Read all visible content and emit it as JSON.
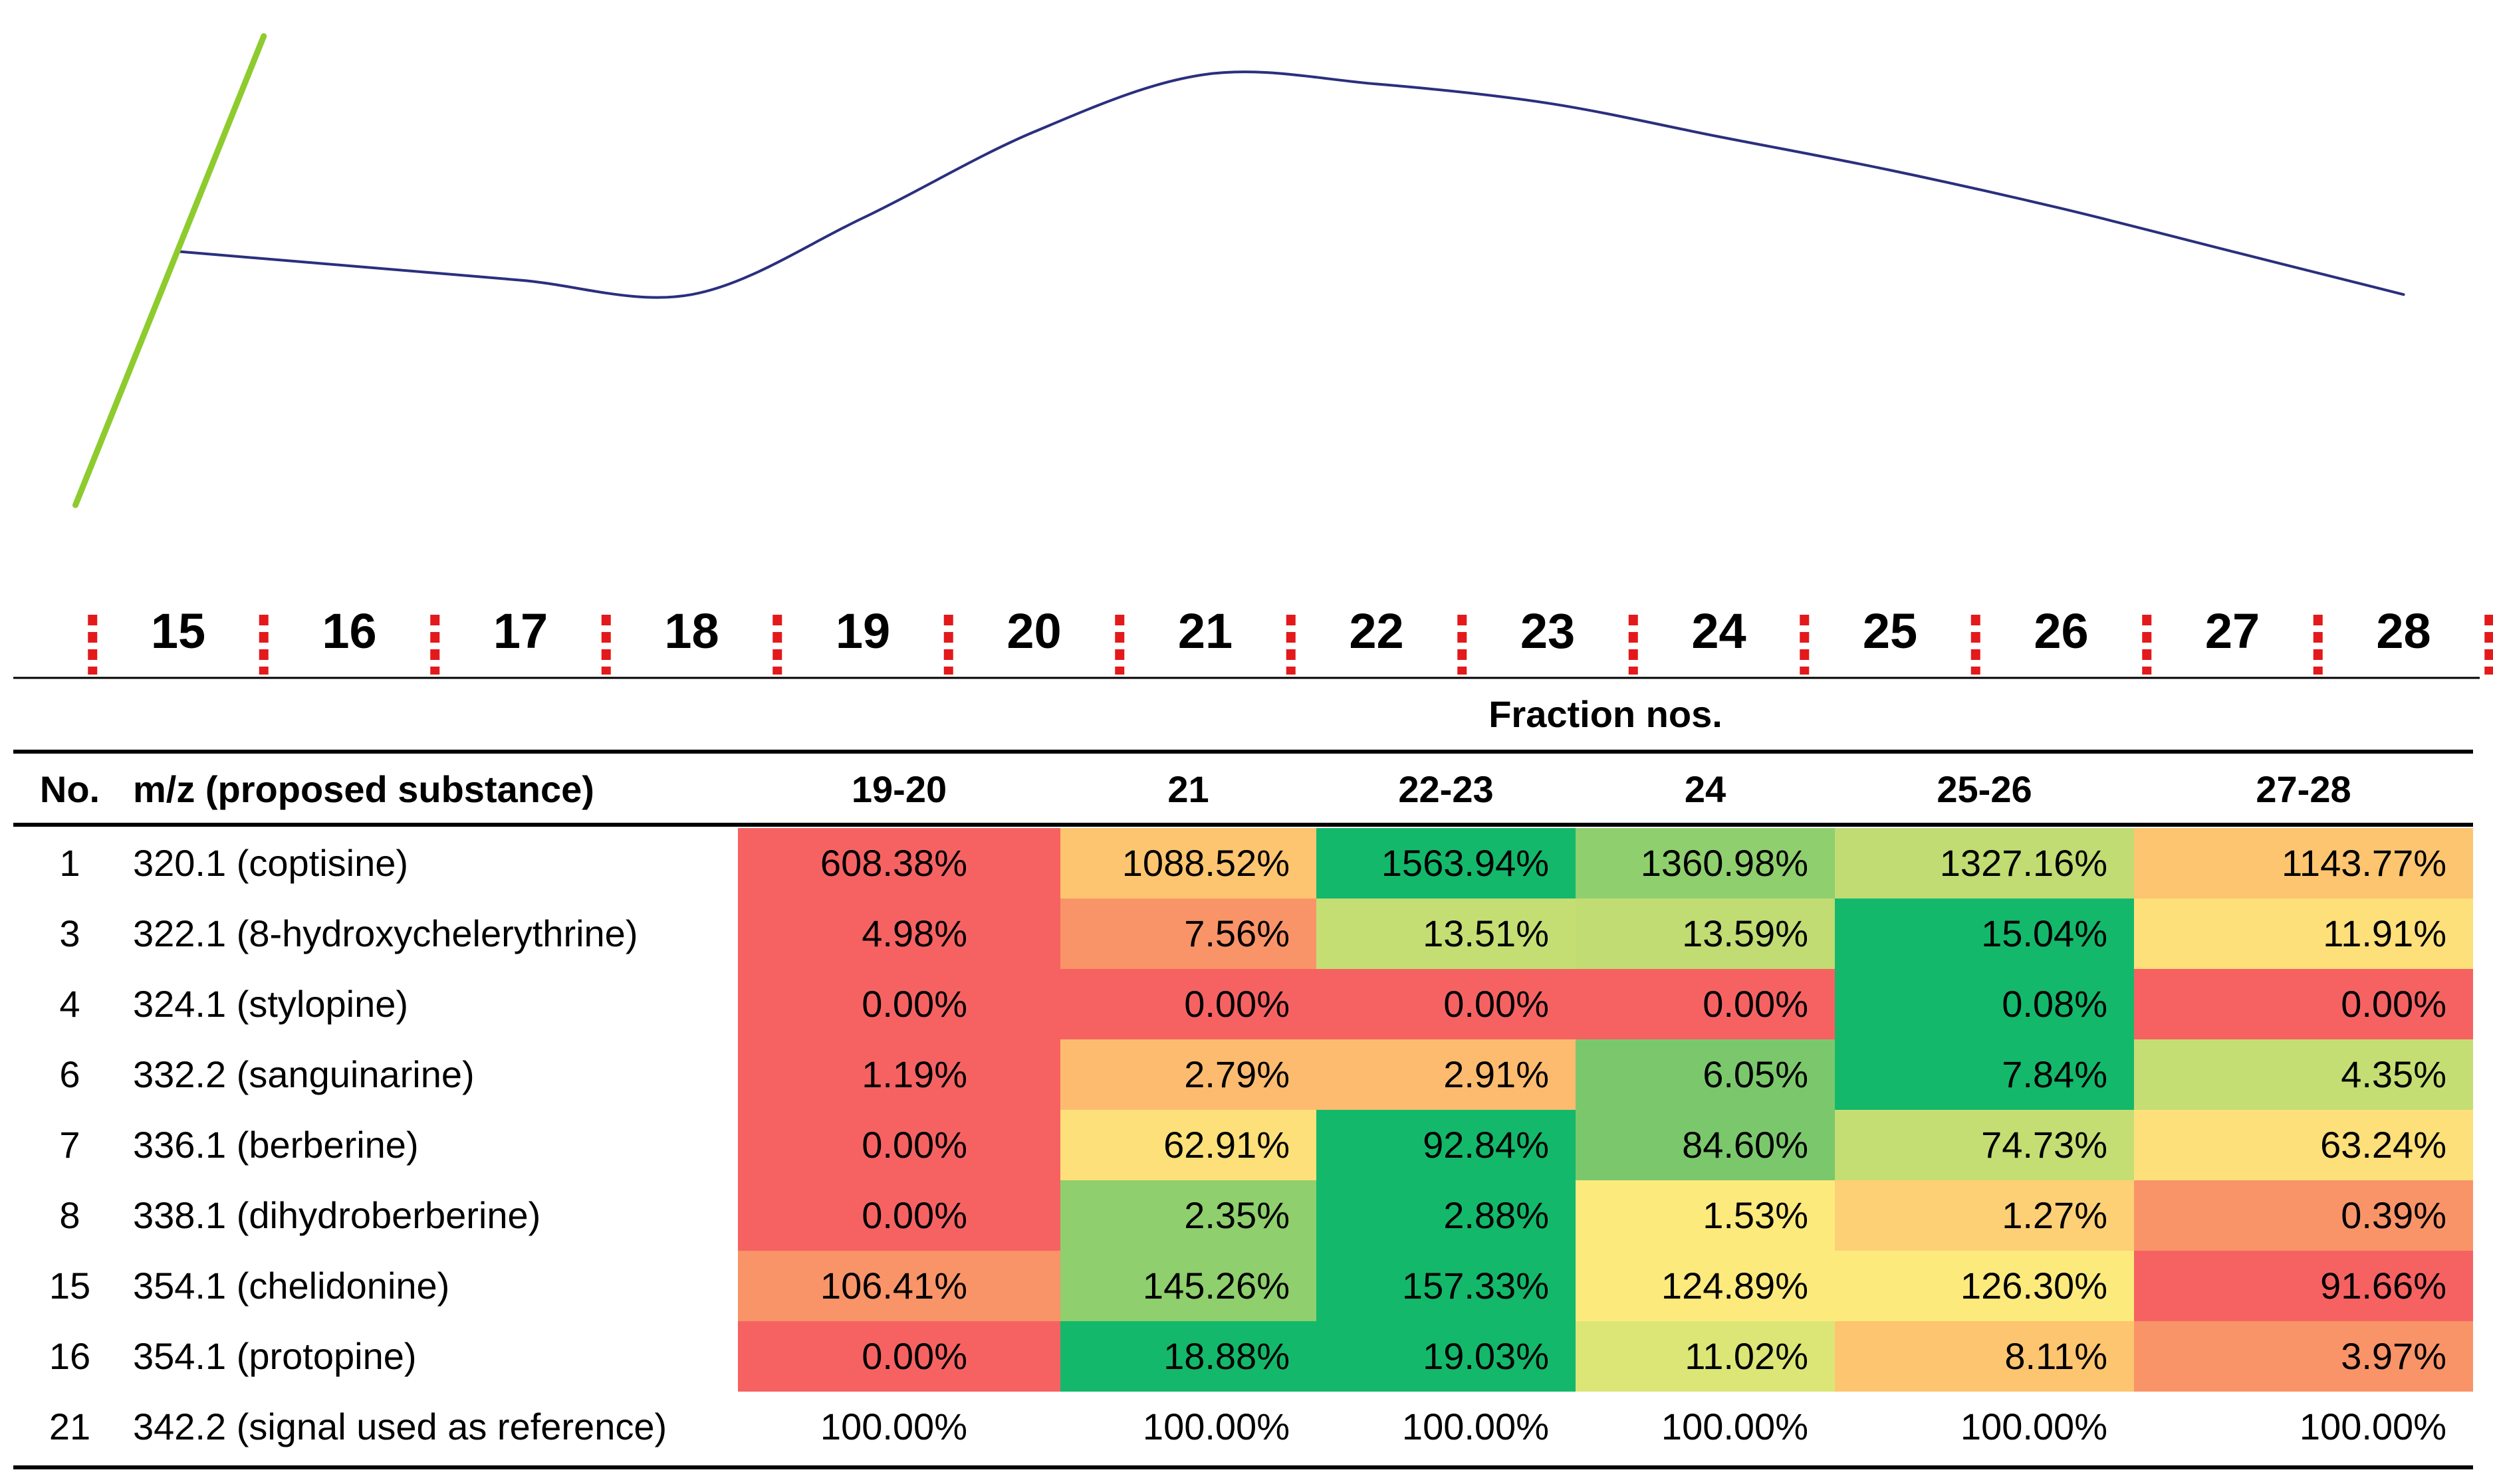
{
  "chart_data": [
    {
      "type": "line",
      "x_axis_labels": [
        "15",
        "16",
        "17",
        "18",
        "19",
        "20",
        "21",
        "22",
        "23",
        "24",
        "25",
        "26",
        "27",
        "28"
      ],
      "series": [
        {
          "color": "#2a2f7e",
          "x": [
            15,
            16,
            17,
            18,
            19,
            20,
            21,
            22,
            23,
            24,
            25,
            26,
            27,
            28
          ],
          "y": [
            0.53,
            0.5,
            0.47,
            0.44,
            0.6,
            0.78,
            0.9,
            0.88,
            0.84,
            0.77,
            0.7,
            0.62,
            0.53,
            0.44
          ]
        },
        {
          "color": "#8ecb2e",
          "x": [
            14.4,
            15.5
          ],
          "y": [
            0.0,
            0.98
          ]
        }
      ]
    },
    {
      "type": "table",
      "superheader": "Fraction nos.",
      "columns": [
        "No.",
        "m/z (proposed substance)",
        "19-20",
        "21",
        "22-23",
        "24",
        "25-26",
        "27-28"
      ],
      "rows": [
        {
          "no": "1",
          "mz": "320.1 (coptisine)",
          "values": [
            "608.38%",
            "1088.52%",
            "1563.94%",
            "1360.98%",
            "1327.16%",
            "1143.77%"
          ],
          "colors": [
            "#f66262",
            "#fdc56f",
            "#14b86b",
            "#8fcf6e",
            "#c0dc72",
            "#fdc56f"
          ]
        },
        {
          "no": "3",
          "mz": "322.1 (8-hydroxychelerythrine)",
          "values": [
            "4.98%",
            "7.56%",
            "13.51%",
            "13.59%",
            "15.04%",
            "11.91%"
          ],
          "colors": [
            "#f66262",
            "#f99468",
            "#c5de73",
            "#c0dc72",
            "#14b86b",
            "#fde07a"
          ]
        },
        {
          "no": "4",
          "mz": "324.1 (stylopine)",
          "values": [
            "0.00%",
            "0.00%",
            "0.00%",
            "0.00%",
            "0.08%",
            "0.00%"
          ],
          "colors": [
            "#f66262",
            "#f66262",
            "#f66262",
            "#f66262",
            "#14b86b",
            "#f66262"
          ]
        },
        {
          "no": "6",
          "mz": "332.2 (sanguinarine)",
          "values": [
            "1.19%",
            "2.79%",
            "2.91%",
            "6.05%",
            "7.84%",
            "4.35%"
          ],
          "colors": [
            "#f66262",
            "#fdbb6f",
            "#fdbb6f",
            "#7bc86c",
            "#14b86b",
            "#c5de73"
          ]
        },
        {
          "no": "7",
          "mz": "336.1 (berberine)",
          "values": [
            "0.00%",
            "62.91%",
            "92.84%",
            "84.60%",
            "74.73%",
            "63.24%"
          ],
          "colors": [
            "#f66262",
            "#fde07a",
            "#14b86b",
            "#7bc86c",
            "#c5de73",
            "#fde07a"
          ]
        },
        {
          "no": "8",
          "mz": "338.1 (dihydroberberine)",
          "values": [
            "0.00%",
            "2.35%",
            "2.88%",
            "1.53%",
            "1.27%",
            "0.39%"
          ],
          "colors": [
            "#f66262",
            "#8fcf6e",
            "#14b86b",
            "#fdea7d",
            "#fdd075",
            "#f99468"
          ]
        },
        {
          "no": "15",
          "mz": "354.1 (chelidonine)",
          "values": [
            "106.41%",
            "145.26%",
            "157.33%",
            "124.89%",
            "126.30%",
            "91.66%"
          ],
          "colors": [
            "#f99468",
            "#8fcf6e",
            "#14b86b",
            "#fdea7d",
            "#fdea7d",
            "#f66262"
          ]
        },
        {
          "no": "16",
          "mz": "354.1 (protopine)",
          "values": [
            "0.00%",
            "18.88%",
            "19.03%",
            "11.02%",
            "8.11%",
            "3.97%"
          ],
          "colors": [
            "#f66262",
            "#14b86b",
            "#14b86b",
            "#dce677",
            "#fdc56f",
            "#f99468"
          ]
        },
        {
          "no": "21",
          "mz": "342.2 (signal used as reference)",
          "values": [
            "100.00%",
            "100.00%",
            "100.00%",
            "100.00%",
            "100.00%",
            "100.00%"
          ],
          "colors": [
            "#ffffff",
            "#ffffff",
            "#ffffff",
            "#ffffff",
            "#ffffff",
            "#ffffff"
          ]
        }
      ]
    }
  ]
}
